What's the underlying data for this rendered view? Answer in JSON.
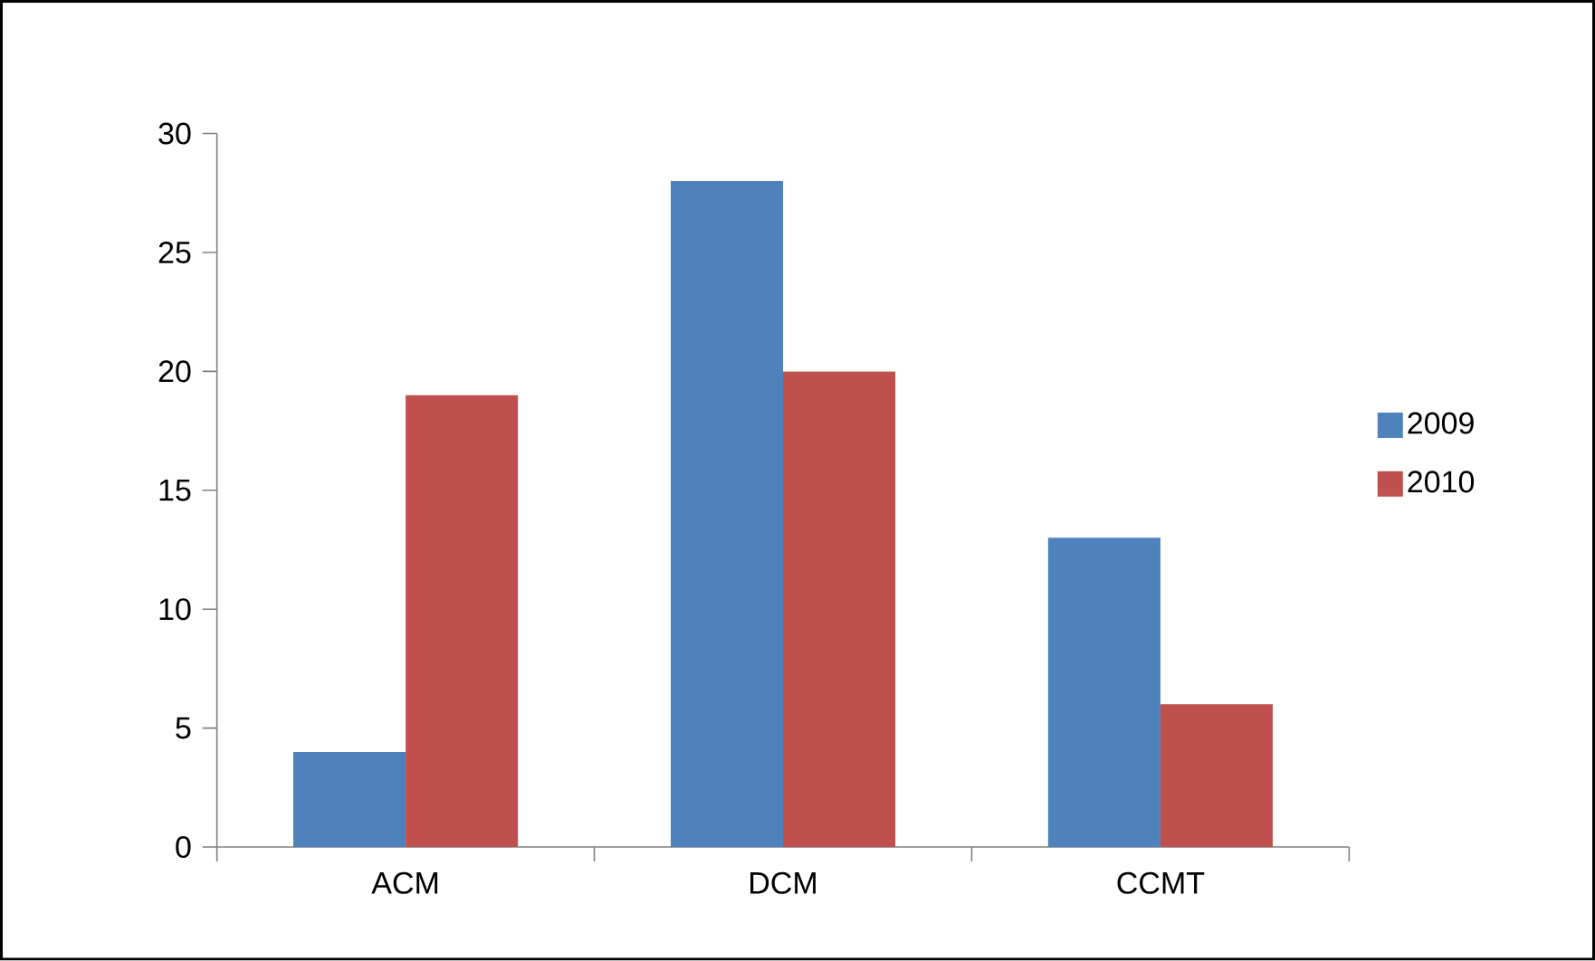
{
  "chart_data": {
    "type": "bar",
    "categories": [
      "ACM",
      "DCM",
      "CCMT"
    ],
    "series": [
      {
        "name": "2009",
        "color": "#4f81bd",
        "values": [
          4,
          28,
          13
        ]
      },
      {
        "name": "2010",
        "color": "#c0504d",
        "values": [
          19,
          20,
          6
        ]
      }
    ],
    "ylim": [
      0,
      30
    ],
    "yticks": [
      0,
      5,
      10,
      15,
      20,
      25,
      30
    ],
    "legend": "right"
  }
}
